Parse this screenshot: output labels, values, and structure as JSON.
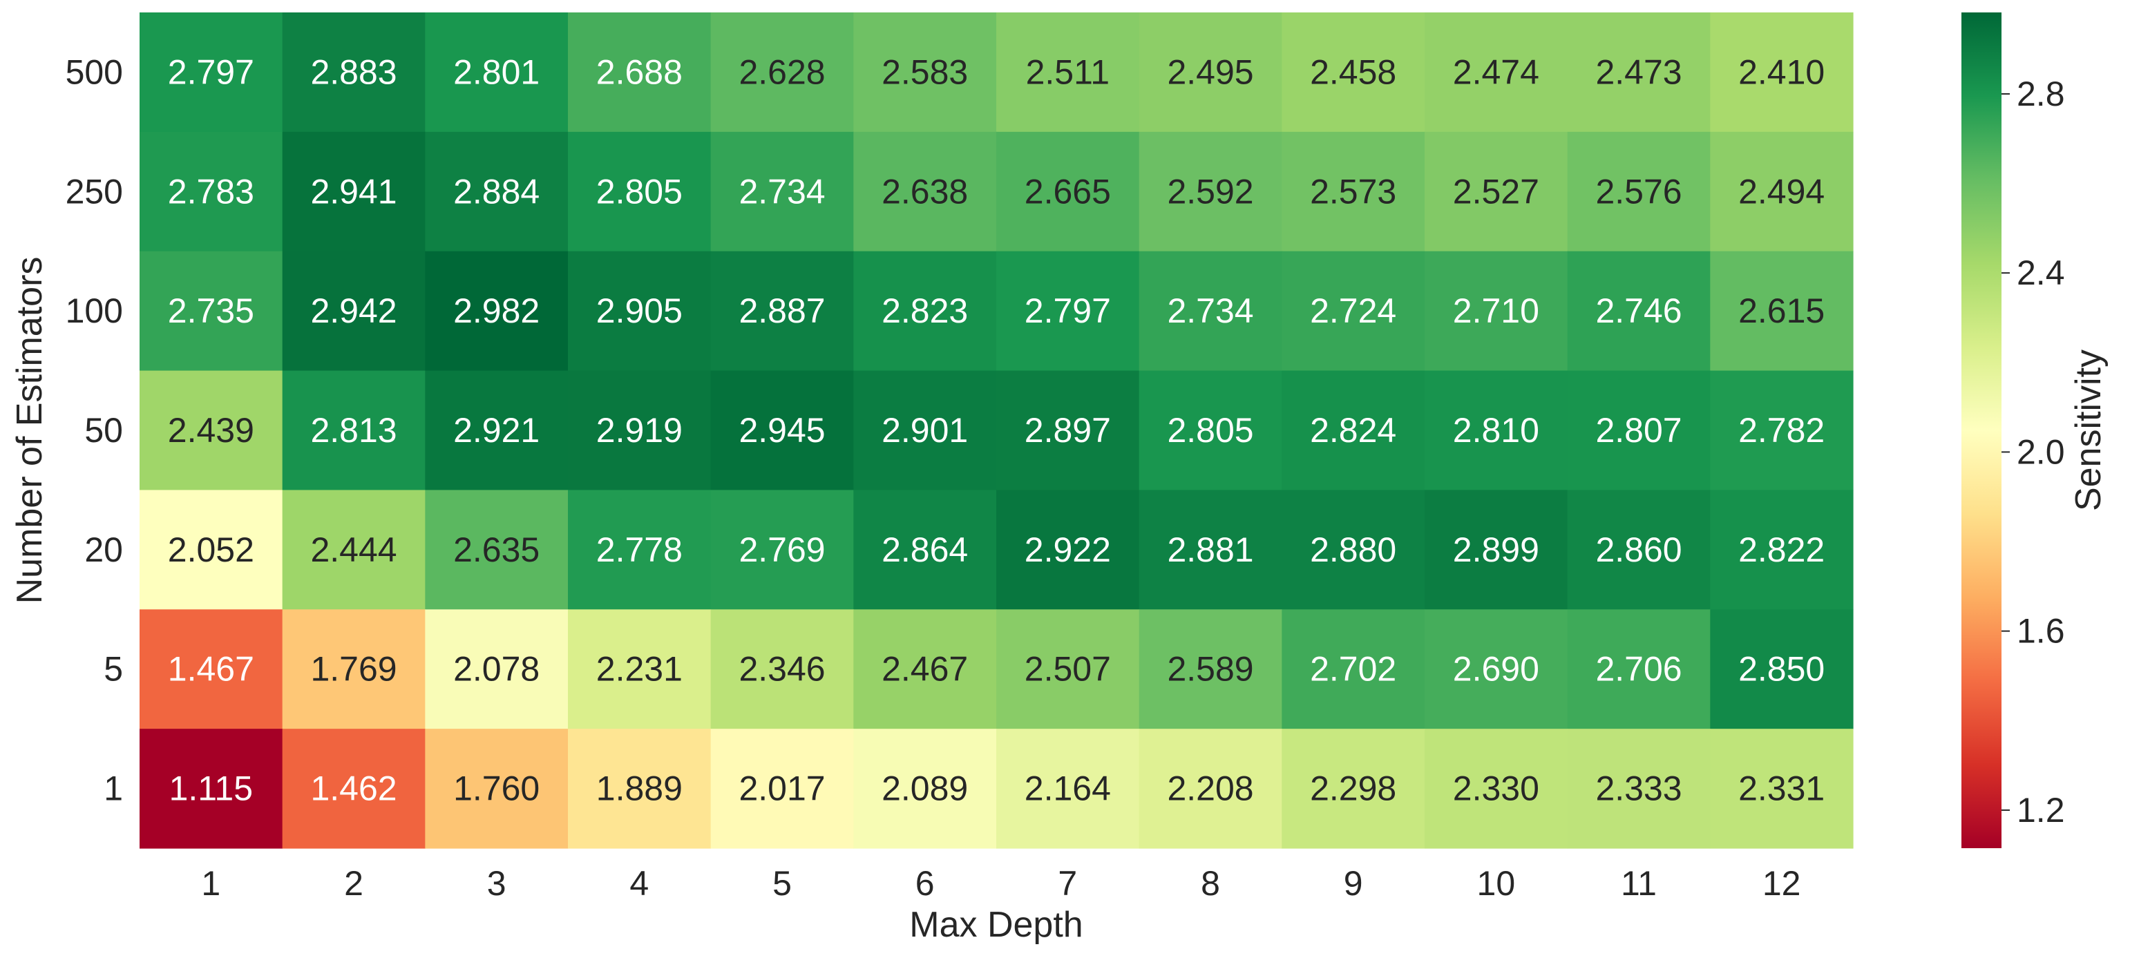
{
  "chart_data": {
    "type": "heatmap",
    "xlabel": "Max Depth",
    "ylabel": "Number of Estimators",
    "x": [
      "1",
      "2",
      "3",
      "4",
      "5",
      "6",
      "7",
      "8",
      "9",
      "10",
      "11",
      "12"
    ],
    "y": [
      "500",
      "250",
      "100",
      "50",
      "20",
      "5",
      "1"
    ],
    "values": [
      [
        2.797,
        2.883,
        2.801,
        2.688,
        2.628,
        2.583,
        2.511,
        2.495,
        2.458,
        2.474,
        2.473,
        2.41
      ],
      [
        2.783,
        2.941,
        2.884,
        2.805,
        2.734,
        2.638,
        2.665,
        2.592,
        2.573,
        2.527,
        2.576,
        2.494
      ],
      [
        2.735,
        2.942,
        2.982,
        2.905,
        2.887,
        2.823,
        2.797,
        2.734,
        2.724,
        2.71,
        2.746,
        2.615
      ],
      [
        2.439,
        2.813,
        2.921,
        2.919,
        2.945,
        2.901,
        2.897,
        2.805,
        2.824,
        2.81,
        2.807,
        2.782
      ],
      [
        2.052,
        2.444,
        2.635,
        2.778,
        2.769,
        2.864,
        2.922,
        2.881,
        2.88,
        2.899,
        2.86,
        2.822
      ],
      [
        1.467,
        1.769,
        2.078,
        2.231,
        2.346,
        2.467,
        2.507,
        2.589,
        2.702,
        2.69,
        2.706,
        2.85
      ],
      [
        1.115,
        1.462,
        1.76,
        1.889,
        2.017,
        2.089,
        2.164,
        2.208,
        2.298,
        2.33,
        2.333,
        2.331
      ]
    ],
    "colorbar": {
      "label": "Sensitivity",
      "range": [
        1.115,
        2.982
      ],
      "ticks": [
        "1.2",
        "1.6",
        "2.0",
        "2.4",
        "2.8"
      ],
      "colormap": "RdYlGn"
    },
    "annotations": "values shown in each cell with 3 decimals",
    "grid": false
  }
}
